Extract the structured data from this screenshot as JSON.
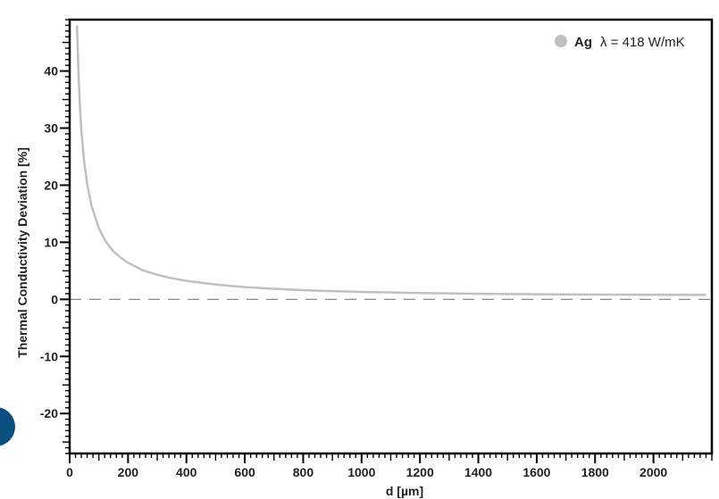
{
  "chart_data": {
    "type": "line",
    "xlabel": "d [µm]",
    "ylabel": "Thermal Conductivity Deviation [%]",
    "xlim": [
      0,
      2200
    ],
    "ylim": [
      -27,
      49
    ],
    "x_ticks": [
      0,
      200,
      400,
      600,
      800,
      1000,
      1200,
      1400,
      1600,
      1800,
      2000
    ],
    "y_ticks": [
      -20,
      -10,
      0,
      10,
      20,
      30,
      40
    ],
    "reference_line": {
      "y": 0,
      "style": "dashed"
    },
    "legend": {
      "position": "top-right",
      "name": "Ag",
      "label": "λ = 418 W/mK"
    },
    "series": [
      {
        "name": "Ag",
        "color": "#c0c0c0",
        "points": [
          [
            25,
            48
          ],
          [
            30,
            40
          ],
          [
            35,
            34
          ],
          [
            40,
            29.5
          ],
          [
            50,
            24
          ],
          [
            60,
            20.2
          ],
          [
            75,
            16.4
          ],
          [
            100,
            12.4
          ],
          [
            125,
            10
          ],
          [
            150,
            8.4
          ],
          [
            175,
            7.3
          ],
          [
            200,
            6.4
          ],
          [
            250,
            5.1
          ],
          [
            300,
            4.3
          ],
          [
            350,
            3.7
          ],
          [
            400,
            3.25
          ],
          [
            500,
            2.6
          ],
          [
            600,
            2.15
          ],
          [
            700,
            1.85
          ],
          [
            800,
            1.6
          ],
          [
            900,
            1.45
          ],
          [
            1000,
            1.3
          ],
          [
            1200,
            1.1
          ],
          [
            1400,
            0.98
          ],
          [
            1600,
            0.9
          ],
          [
            1800,
            0.84
          ],
          [
            2000,
            0.8
          ],
          [
            2180,
            0.78
          ]
        ]
      }
    ]
  },
  "colors": {
    "curve": "#c0c0c0",
    "axis": "#000000",
    "dash": "#888888",
    "badge": "#0b4f80"
  }
}
